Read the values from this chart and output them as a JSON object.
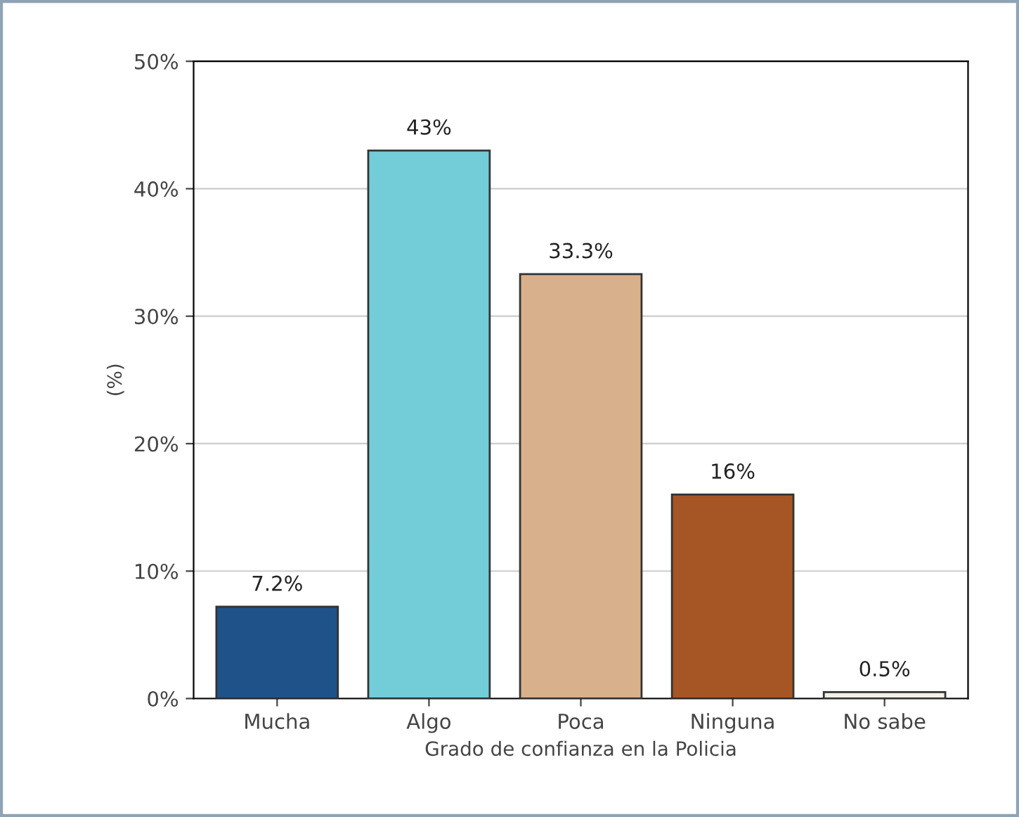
{
  "chart_data": {
    "type": "bar",
    "xlabel": "Grado de confianza en la Policia",
    "ylabel": "(%)",
    "categories": [
      "Mucha",
      "Algo",
      "Poca",
      "Ninguna",
      "No sabe"
    ],
    "values": [
      7.2,
      43,
      33.3,
      16,
      0.5
    ],
    "colors": [
      "#20528a",
      "#72cdd9",
      "#d9b08c",
      "#a65624",
      "#f3f0e6"
    ],
    "value_labels": [
      "7.2%",
      "43%",
      "33.3%",
      "16%",
      "0.5%"
    ],
    "ylim": [
      0,
      50
    ],
    "yticks": [
      {
        "value": 0,
        "label": "0%"
      },
      {
        "value": 10,
        "label": "10%"
      },
      {
        "value": 20,
        "label": "20%"
      },
      {
        "value": 30,
        "label": "30%"
      },
      {
        "value": 40,
        "label": "40%"
      },
      {
        "value": 50,
        "label": "50%"
      }
    ],
    "grid": "y",
    "legend": false
  }
}
